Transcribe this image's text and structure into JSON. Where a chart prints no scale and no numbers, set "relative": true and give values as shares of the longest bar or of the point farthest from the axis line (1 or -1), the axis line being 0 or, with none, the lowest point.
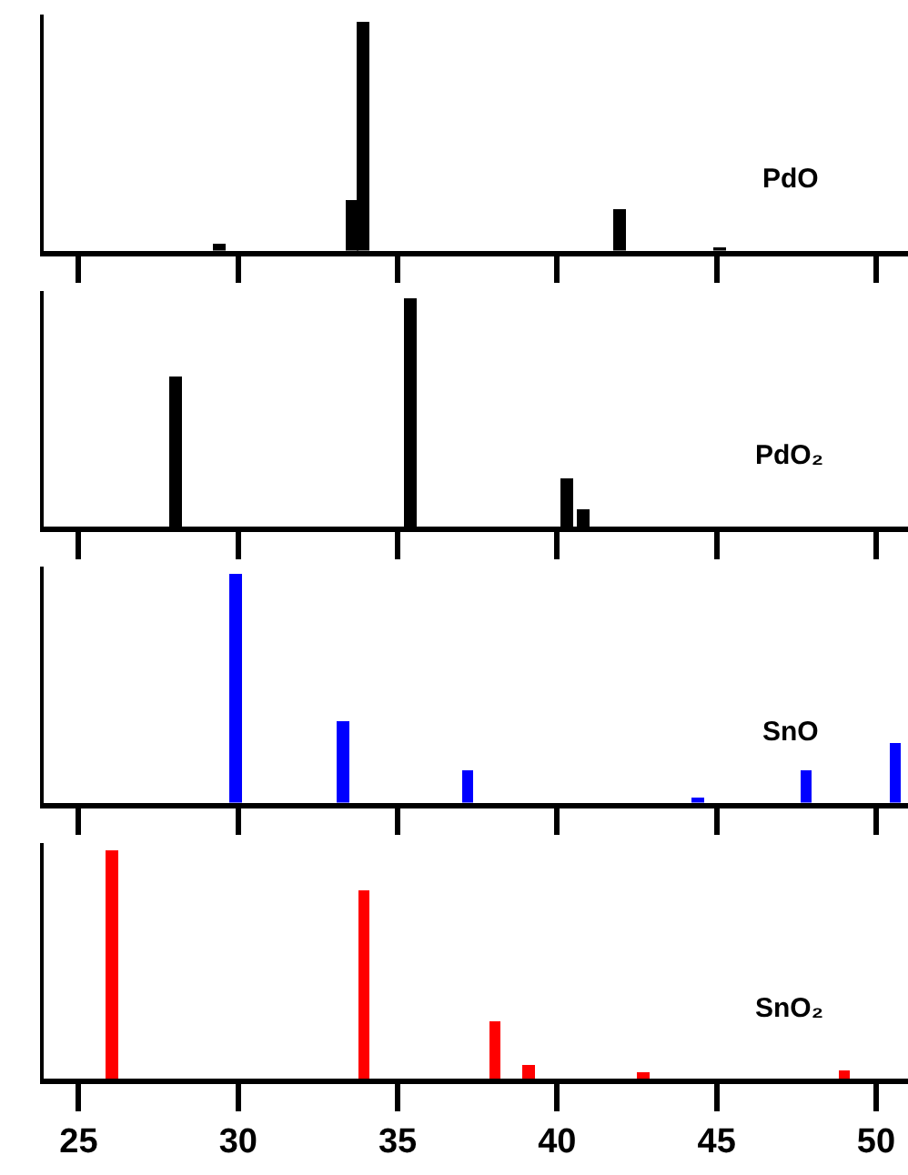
{
  "chart_data": [
    {
      "type": "bar",
      "relative": true,
      "x": [
        29.4,
        33.56,
        33.9,
        41.97,
        45.1
      ],
      "series": [
        {
          "name": "PdO",
          "color": "#000000",
          "values": [
            0.03,
            0.217,
            1,
            0.18,
            0.012
          ]
        }
      ],
      "xlim": [
        23.9,
        51
      ],
      "xticks": [
        25,
        30,
        35,
        40,
        45,
        50
      ],
      "tick_labels": false
    },
    {
      "type": "bar",
      "relative": true,
      "x": [
        28.03,
        35.4,
        40.3,
        40.8
      ],
      "series": [
        {
          "name": "PdO₂",
          "color": "#000000",
          "values": [
            0.66,
            1,
            0.216,
            0.075
          ]
        }
      ],
      "xlim": [
        23.9,
        51
      ],
      "xticks": [
        25,
        30,
        35,
        40,
        45,
        50
      ],
      "tick_labels": false
    },
    {
      "type": "bar",
      "relative": true,
      "x": [
        29.9,
        33.3,
        37.2,
        44.4,
        47.8,
        50.6
      ],
      "series": [
        {
          "name": "SnO",
          "color": "#0000ff",
          "values": [
            1,
            0.354,
            0.143,
            0.023,
            0.143,
            0.257
          ]
        }
      ],
      "xlim": [
        23.9,
        51
      ],
      "xticks": [
        25,
        30,
        35,
        40,
        45,
        50
      ],
      "tick_labels": false
    },
    {
      "type": "bar",
      "relative": true,
      "x": [
        26.04,
        33.94,
        38.05,
        39.1,
        42.7,
        49.0
      ],
      "series": [
        {
          "name": "SnO₂",
          "color": "#ff0000",
          "values": [
            1,
            0.82,
            0.25,
            0.06,
            0.03,
            0.04
          ]
        }
      ],
      "xlim": [
        23.9,
        51
      ],
      "xticks": [
        25,
        30,
        35,
        40,
        45,
        50
      ],
      "tick_labels": "x"
    }
  ]
}
